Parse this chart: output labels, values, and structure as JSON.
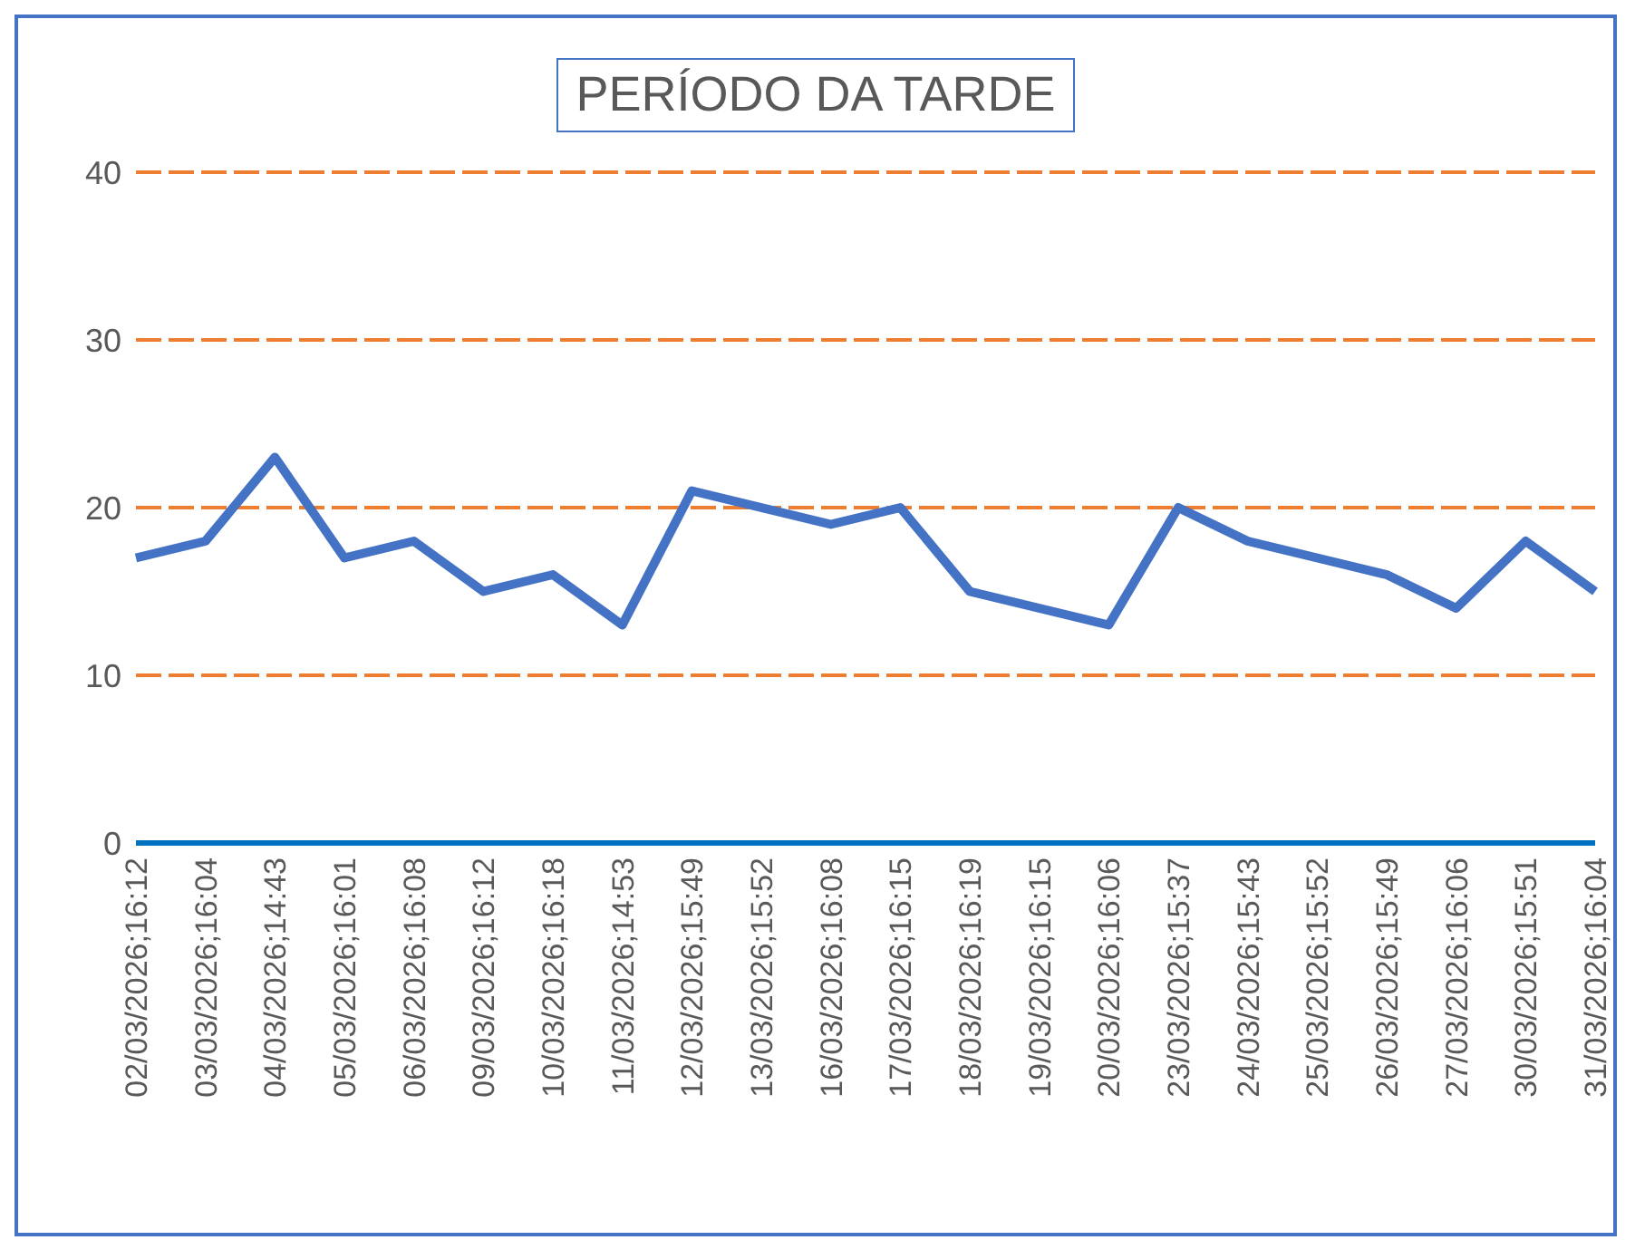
{
  "chart_data": {
    "type": "line",
    "title": "PERÍODO DA TARDE",
    "categories": [
      "02/03/2026;16:12",
      "03/03/2026;16:04",
      "04/03/2026;14:43",
      "05/03/2026;16:01",
      "06/03/2026;16:08",
      "09/03/2026;16:12",
      "10/03/2026;16:18",
      "11/03/2026;14:53",
      "12/03/2026;15:49",
      "13/03/2026;15:52",
      "16/03/2026;16:08",
      "17/03/2026;16:15",
      "18/03/2026;16:19",
      "19/03/2026;16:15",
      "20/03/2026;16:06",
      "23/03/2026;15:37",
      "24/03/2026;15:43",
      "25/03/2026;15:52",
      "26/03/2026;15:49",
      "27/03/2026;16:06",
      "30/03/2026;15:51",
      "31/03/2026;16:04"
    ],
    "series": [
      {
        "color": "#4472c4",
        "values": [
          17,
          18,
          23,
          17,
          18,
          15,
          16,
          13,
          21,
          20,
          19,
          20,
          15,
          14,
          13,
          20,
          18,
          17,
          16,
          14,
          18,
          15
        ]
      }
    ],
    "ylim": [
      0,
      40
    ],
    "yticks": [
      0,
      10,
      20,
      30,
      40
    ],
    "grid": "y",
    "legend": false,
    "marker": "none",
    "line_style": "solid"
  }
}
